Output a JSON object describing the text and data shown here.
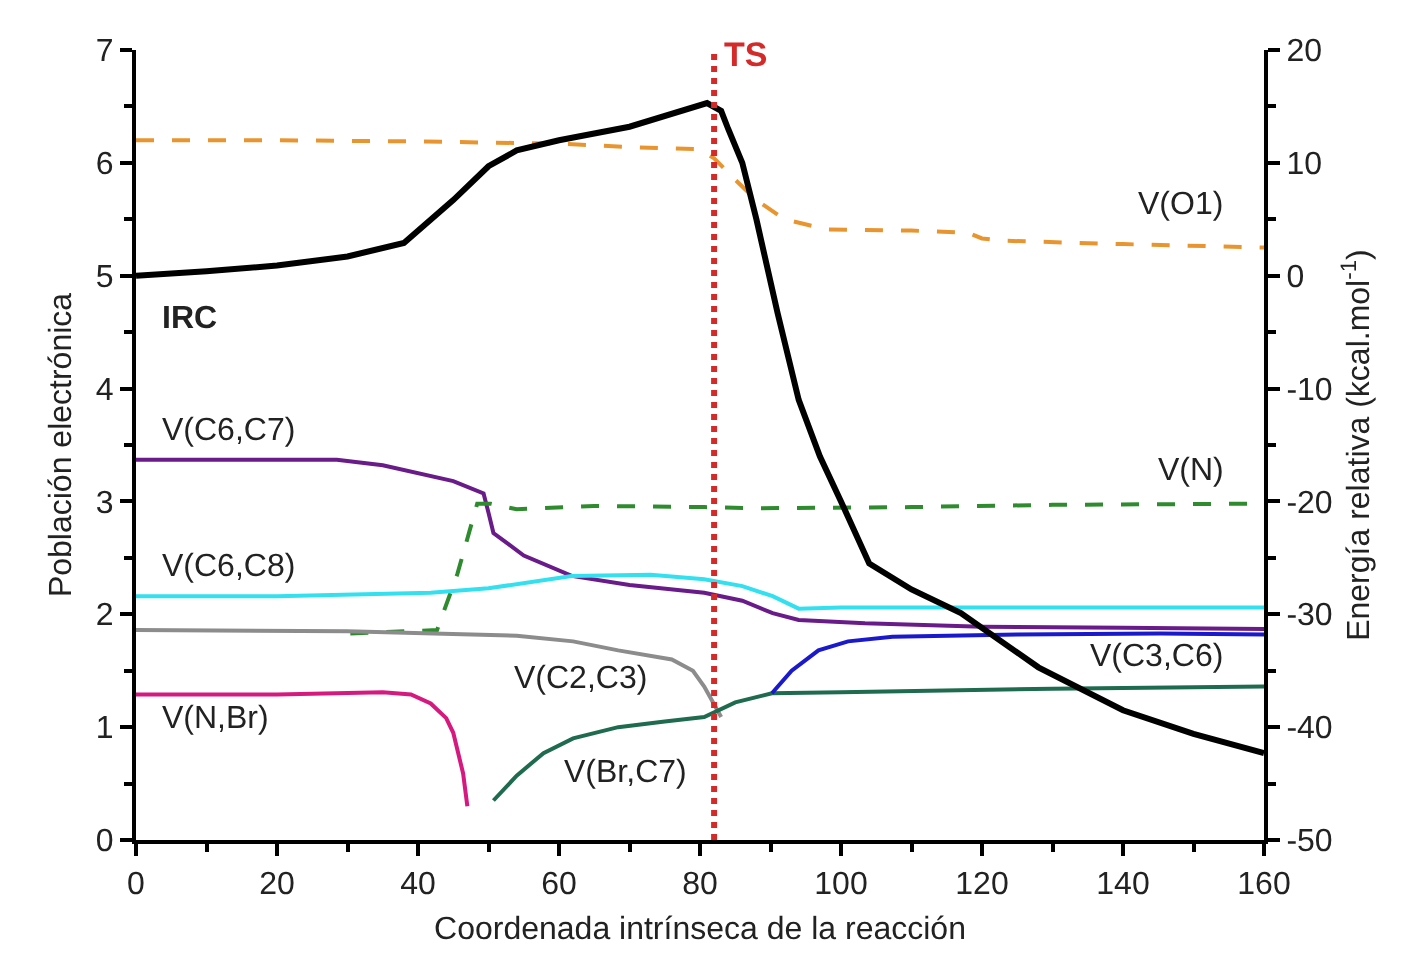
{
  "chart_data": {
    "type": "line",
    "xlabel": "Coordenada intrínseca de la reacción",
    "ylabel": "Población electrónica",
    "y2label": "Energía relativa (kcal.mol$^{-1}$)",
    "xlim": [
      0,
      160
    ],
    "xticks": [
      0,
      20,
      40,
      60,
      80,
      100,
      120,
      140,
      160
    ],
    "ylim": [
      0,
      7
    ],
    "yticks": [
      0,
      1,
      2,
      3,
      4,
      5,
      6,
      7
    ],
    "y2lim": [
      -50,
      20
    ],
    "y2ticks": [
      -50,
      -40,
      -30,
      -20,
      -10,
      0,
      10,
      20
    ],
    "legend": false,
    "marker": "none",
    "ref_lines": [
      {
        "axis": "x",
        "value": 82,
        "label": "TS",
        "color": "#d42a2a",
        "line_style": "dotted"
      }
    ],
    "series": [
      {
        "name": "IRC",
        "color": "#000000",
        "axis": "y2",
        "line_style": "solid",
        "x": [
          0,
          10,
          20,
          30,
          38,
          45,
          50,
          54,
          60,
          70,
          81,
          83,
          84,
          86,
          88,
          91,
          94,
          97,
          100,
          104,
          110,
          117,
          128,
          140,
          150,
          160
        ],
        "values": [
          0,
          0.4,
          0.9,
          1.7,
          2.9,
          6.7,
          9.7,
          11.1,
          12,
          13.2,
          15.3,
          14.6,
          13,
          10,
          5,
          -3.3,
          -11,
          -16,
          -20,
          -25.5,
          -27.8,
          -29.9,
          -34.7,
          -38.5,
          -40.6,
          -42.3
        ]
      },
      {
        "name": "V(O1)",
        "color": "#e8952f",
        "line_style": "dashed",
        "x": [
          0,
          20,
          40,
          60,
          70,
          80,
          82,
          85,
          88,
          92,
          98,
          110,
          118,
          120,
          123,
          140,
          160
        ],
        "values": [
          6.2,
          6.2,
          6.19,
          6.17,
          6.14,
          6.12,
          6.04,
          5.85,
          5.67,
          5.5,
          5.41,
          5.4,
          5.38,
          5.33,
          5.31,
          5.28,
          5.25
        ]
      },
      {
        "name": "V(C6,C7)",
        "color": "#6a1b8a",
        "line_style": "solid",
        "x": [
          0,
          28.5,
          35,
          45,
          49.3,
          50,
          50.7,
          55,
          61.8,
          70,
          80.6,
          86,
          90.3,
          94,
          103.4,
          120,
          140,
          160
        ],
        "values": [
          3.37,
          3.37,
          3.32,
          3.18,
          3.07,
          2.9,
          2.72,
          2.52,
          2.34,
          2.26,
          2.19,
          2.12,
          2.01,
          1.95,
          1.92,
          1.89,
          1.88,
          1.87
        ]
      },
      {
        "name": "V(N)",
        "color": "#2e8b2e",
        "line_style": "dashed",
        "x": [
          30.4,
          42.7,
          45.6,
          48.4,
          50.3,
          54,
          65,
          80.6,
          88.3,
          110,
          130,
          160
        ],
        "values": [
          1.83,
          1.86,
          2.36,
          2.98,
          2.98,
          2.93,
          2.96,
          2.95,
          2.94,
          2.95,
          2.97,
          2.98
        ]
      },
      {
        "name": "V(C6,C8)",
        "color": "#33e0f0",
        "line_style": "solid",
        "x": [
          0,
          20,
          41.8,
          50,
          61.8,
          73,
          80.6,
          86,
          90.3,
          94,
          100,
          130,
          160
        ],
        "values": [
          2.16,
          2.16,
          2.19,
          2.23,
          2.34,
          2.35,
          2.31,
          2.25,
          2.16,
          2.05,
          2.06,
          2.06,
          2.06
        ]
      },
      {
        "name": "V(C2,C3)",
        "color": "#8c8c8c",
        "line_style": "solid",
        "x": [
          0,
          30,
          54,
          62,
          68.4,
          76,
          79,
          80.6,
          83
        ],
        "values": [
          1.86,
          1.85,
          1.81,
          1.76,
          1.68,
          1.6,
          1.5,
          1.36,
          1.09
        ]
      },
      {
        "name": "V(N,Br)",
        "color": "#d6197f",
        "line_style": "solid",
        "x": [
          0,
          20,
          35,
          39,
          41.8,
          44,
          45,
          46.4,
          47
        ],
        "values": [
          1.29,
          1.29,
          1.31,
          1.29,
          1.21,
          1.08,
          0.95,
          0.59,
          0.3
        ]
      },
      {
        "name": "V(Br,C7)",
        "color": "#1f6b4f",
        "line_style": "solid",
        "x": [
          50.7,
          54,
          57.8,
          62,
          68.4,
          75,
          80.6,
          85,
          90.2,
          100,
          130,
          160
        ],
        "values": [
          0.35,
          0.57,
          0.77,
          0.9,
          1.0,
          1.05,
          1.09,
          1.22,
          1.3,
          1.31,
          1.34,
          1.36
        ]
      },
      {
        "name": "V(C3,C6)",
        "color": "#1a1acc",
        "line_style": "solid",
        "x": [
          90.2,
          93,
          96.8,
          101,
          107.3,
          125,
          145.3,
          160
        ],
        "values": [
          1.3,
          1.5,
          1.68,
          1.76,
          1.8,
          1.82,
          1.83,
          1.82
        ]
      }
    ]
  }
}
